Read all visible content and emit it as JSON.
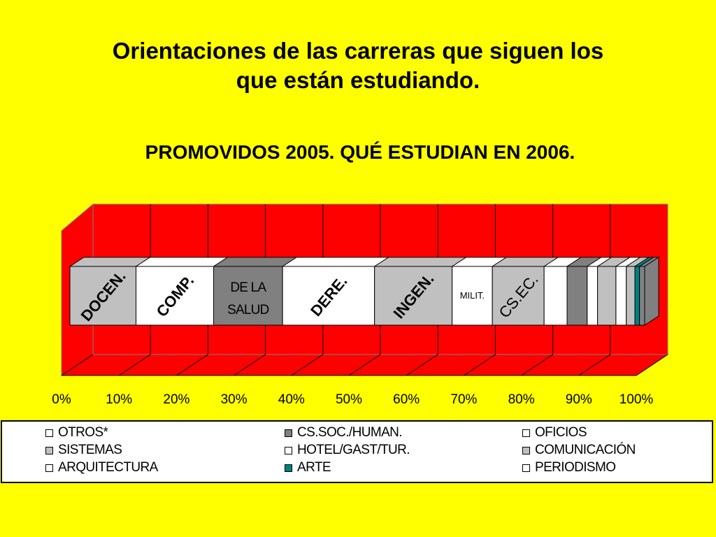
{
  "title_lines": [
    "Orientaciones  de las carreras que siguen los",
    "que están estudiando."
  ],
  "subtitle": "PROMOVIDOS 2005. QUÉ ESTUDIAN EN 2006.",
  "colors": {
    "background": "#FFFF00",
    "plot_area": "#FF0000",
    "teal": "#008080",
    "gray": "#C0C0C0",
    "dark_gray": "#808080",
    "white": "#FFFFFF"
  },
  "chart_data": {
    "type": "bar",
    "orientation": "horizontal",
    "stacked": "percent",
    "3d": true,
    "title": "PROMOVIDOS 2005. QUÉ ESTUDIAN EN 2006.",
    "xlim": [
      0,
      100
    ],
    "ticks": [
      "0%",
      "10%",
      "20%",
      "30%",
      "40%",
      "50%",
      "60%",
      "70%",
      "80%",
      "90%",
      "100%"
    ],
    "grid": true,
    "legend_position": "bottom",
    "segments": [
      {
        "label": "DOCEN.",
        "value": 11.5,
        "color": "#C0C0C0"
      },
      {
        "label": "COMP.",
        "value": 13.5,
        "color": "#FFFFFF"
      },
      {
        "label_lines": [
          "DE LA",
          "SALUD"
        ],
        "value": 12.0,
        "color": "#808080"
      },
      {
        "label": "DERE.",
        "value": 16.0,
        "color": "#FFFFFF"
      },
      {
        "label": "INGEN.",
        "value": 13.5,
        "color": "#C0C0C0"
      },
      {
        "label": "MILIT.",
        "value": 7.0,
        "color": "#FFFFFF"
      },
      {
        "label": "CS.EC.",
        "value": 9.0,
        "color": "#C0C0C0"
      },
      {
        "label": "",
        "value": 4.0,
        "color": "#FFFFFF"
      },
      {
        "label": "",
        "value": 3.5,
        "color": "#808080"
      },
      {
        "label": "",
        "value": 1.8,
        "color": "#FFFFFF"
      },
      {
        "label": "",
        "value": 3.2,
        "color": "#C0C0C0"
      },
      {
        "label": "",
        "value": 1.8,
        "color": "#FFFFFF"
      },
      {
        "label": "",
        "value": 1.5,
        "color": "#C0C0C0"
      },
      {
        "label": "",
        "value": 0.8,
        "color": "#008080"
      },
      {
        "label": "",
        "value": 0.9,
        "color": "#808080"
      }
    ],
    "legend": [
      {
        "name": "OTROS*",
        "color": "#FFFFFF"
      },
      {
        "name": "CS.SOC./HUMAN.",
        "color": "#808080"
      },
      {
        "name": "OFICIOS",
        "color": "#FFFFFF"
      },
      {
        "name": "SISTEMAS",
        "color": "#C0C0C0"
      },
      {
        "name": "HOTEL/GAST/TUR.",
        "color": "#FFFFFF"
      },
      {
        "name": "COMUNICACIÓN",
        "color": "#C0C0C0"
      },
      {
        "name": "ARQUITECTURA",
        "color": "#FFFFFF"
      },
      {
        "name": "ARTE",
        "color": "#008080"
      },
      {
        "name": "PERIODISMO",
        "color": "#FFFFFF"
      }
    ]
  }
}
